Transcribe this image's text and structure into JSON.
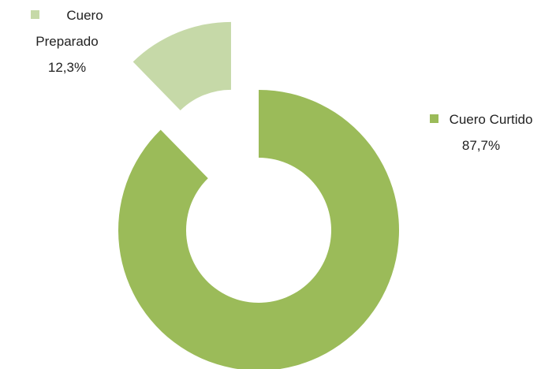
{
  "chart_data": {
    "type": "donut",
    "categories": [
      "Cuero Curtido",
      "Cuero Preparado"
    ],
    "values": [
      87.7,
      12.3
    ],
    "value_labels": [
      "87,7%",
      "12,3%"
    ],
    "colors": [
      "#9bbb59",
      "#c6d9a8"
    ]
  }
}
